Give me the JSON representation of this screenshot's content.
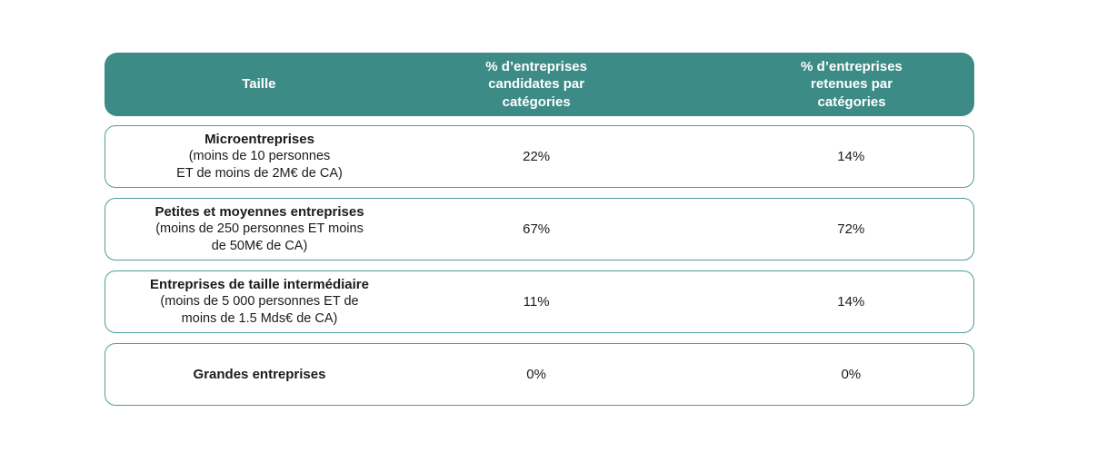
{
  "colors": {
    "header_bg": "#3d8b86",
    "header_text": "#ffffff",
    "row_border": "#4f9e99",
    "body_text": "#1b1b1b",
    "page_bg": "#ffffff"
  },
  "table": {
    "header": {
      "columns": [
        {
          "label": "Taille"
        },
        {
          "label": "% d’entreprises\ncandidates par\ncatégories"
        },
        {
          "label": "% d’entreprises\nretenues par\ncatégories"
        }
      ]
    },
    "rows": [
      {
        "name": "Microentreprises",
        "detail": "(moins de 10 personnes\nET de moins de 2M€ de CA)",
        "candidates": "22%",
        "retenues": "14%"
      },
      {
        "name": "Petites et moyennes entreprises",
        "detail": "(moins de 250 personnes ET moins\nde 50M€ de CA)",
        "candidates": "67%",
        "retenues": "72%"
      },
      {
        "name": "Entreprises de taille intermédiaire",
        "detail": "(moins de 5 000 personnes ET de\nmoins de 1.5 Mds€ de CA)",
        "candidates": "11%",
        "retenues": "14%"
      },
      {
        "name": "Grandes entreprises",
        "detail": "",
        "candidates": "0%",
        "retenues": "0%"
      }
    ]
  },
  "chart_data": {
    "type": "table",
    "title": "",
    "columns": [
      "Taille",
      "% d’entreprises candidates par catégories",
      "% d’entreprises retenues par catégories"
    ],
    "rows": [
      [
        "Microentreprises (moins de 10 personnes ET de moins de 2M€ de CA)",
        "22%",
        "14%"
      ],
      [
        "Petites et moyennes entreprises (moins de 250 personnes ET moins de 50M€ de CA)",
        "67%",
        "72%"
      ],
      [
        "Entreprises de taille intermédiaire (moins de 5 000 personnes ET de moins de 1.5 Mds€ de CA)",
        "11%",
        "14%"
      ],
      [
        "Grandes entreprises",
        "0%",
        "0%"
      ]
    ],
    "candidates_values_pct": [
      22,
      67,
      11,
      0
    ],
    "retenues_values_pct": [
      14,
      72,
      14,
      0
    ]
  }
}
